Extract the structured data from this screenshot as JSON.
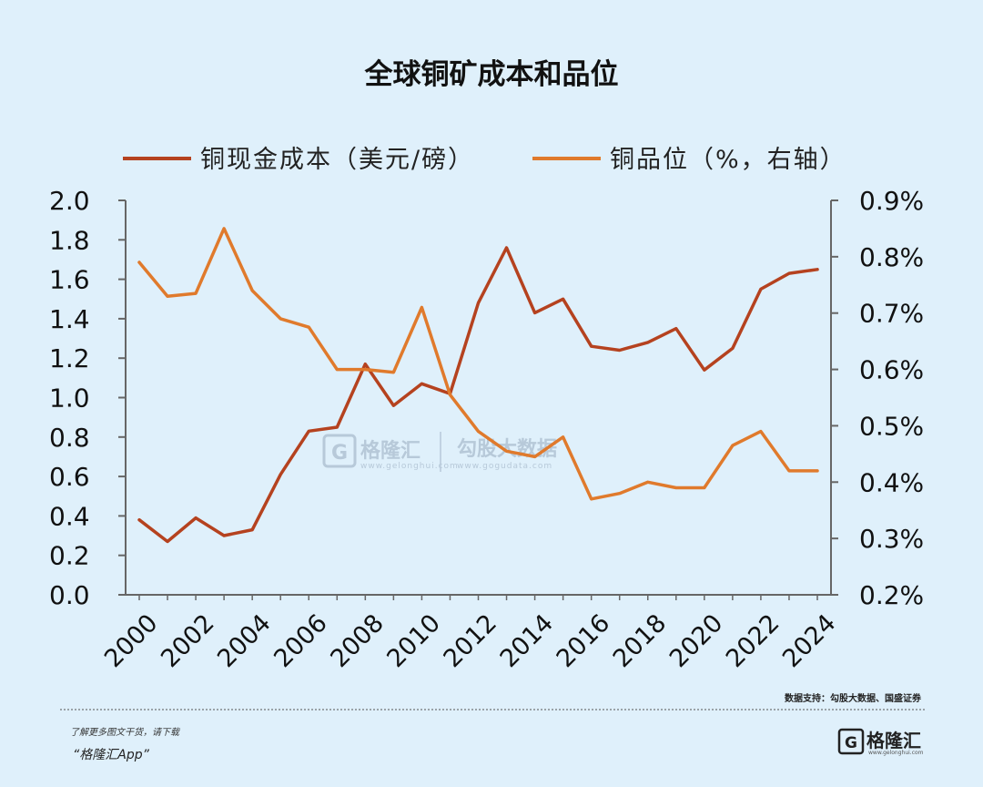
{
  "chart_data": {
    "type": "line",
    "title": "全球铜矿成本和品位",
    "categories": [
      "2000",
      "2001",
      "2002",
      "2003",
      "2004",
      "2005",
      "2006",
      "2007",
      "2008",
      "2009",
      "2010",
      "2011",
      "2012",
      "2013",
      "2014",
      "2015",
      "2016",
      "2017",
      "2018",
      "2019",
      "2020",
      "2021",
      "2022",
      "2023",
      "2024"
    ],
    "x_tick_labels": [
      "2000",
      "2002",
      "2004",
      "2006",
      "2008",
      "2010",
      "2012",
      "2014",
      "2016",
      "2018",
      "2020",
      "2022",
      "2024"
    ],
    "series": [
      {
        "name": "铜现金成本（美元/磅）",
        "axis": "left",
        "color": "#b5421f",
        "values": [
          0.38,
          0.27,
          0.39,
          0.3,
          0.33,
          0.61,
          0.83,
          0.85,
          1.17,
          0.96,
          1.07,
          1.02,
          1.48,
          1.76,
          1.43,
          1.5,
          1.26,
          1.24,
          1.28,
          1.35,
          1.14,
          1.25,
          1.55,
          1.63,
          1.65
        ]
      },
      {
        "name": "铜品位（%，右轴）",
        "axis": "right",
        "color": "#e07a2c",
        "values": [
          0.79,
          0.73,
          0.735,
          0.85,
          0.74,
          0.69,
          0.675,
          0.6,
          0.6,
          0.595,
          0.71,
          0.555,
          0.49,
          0.455,
          0.445,
          0.48,
          0.37,
          0.38,
          0.4,
          0.39,
          0.39,
          0.465,
          0.49,
          0.42,
          0.42
        ]
      }
    ],
    "y_left": {
      "min": 0.0,
      "max": 2.0,
      "ticks": [
        "0.0",
        "0.2",
        "0.4",
        "0.6",
        "0.8",
        "1.0",
        "1.2",
        "1.4",
        "1.6",
        "1.8",
        "2.0"
      ]
    },
    "y_right": {
      "min": 0.2,
      "max": 0.9,
      "ticks": [
        "0.2%",
        "0.3%",
        "0.4%",
        "0.5%",
        "0.6%",
        "0.7%",
        "0.8%",
        "0.9%"
      ]
    },
    "legend_position": "top",
    "grid": false
  },
  "source_note": "数据支持：勾股大数据、国盛证券",
  "watermark": {
    "brand": "格隆汇",
    "brand_url": "www.gelonghui.com",
    "brand2": "勾股大数据",
    "brand2_url": "www.gogudata.com"
  },
  "footer": {
    "line1": "了解更多图文干货，请下载",
    "line2": "“格隆汇App”",
    "logo": "格隆汇",
    "logo_url": "www.gelonghui.com"
  },
  "colors": {
    "background": "#dff0fb",
    "cost_line": "#b5421f",
    "grade_line": "#e07a2c"
  }
}
